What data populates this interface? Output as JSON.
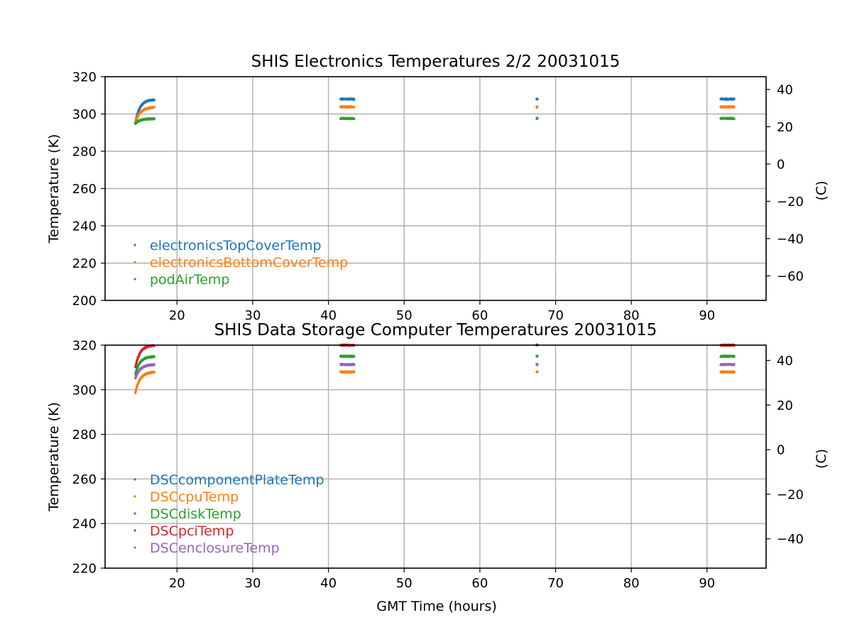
{
  "figure": {
    "xlabel": "GMT Time (hours)"
  },
  "colors": {
    "blue": "#1f77b4",
    "orange": "#ff7f0e",
    "green": "#2ca02c",
    "red": "#d62728",
    "purple": "#9467bd",
    "grid": "#b0b0b0"
  },
  "chart_data": [
    {
      "type": "scatter",
      "title": "SHIS Electronics Temperatures 2/2 20031015",
      "xlabel": "",
      "ylabel": "Temperature (K)",
      "y2label": "(C)",
      "xlim": [
        10.5,
        97.8
      ],
      "ylim": [
        200,
        320
      ],
      "x_ticks": [
        20,
        30,
        40,
        50,
        60,
        70,
        80,
        90
      ],
      "y_ticks": [
        200,
        220,
        240,
        260,
        280,
        300,
        320
      ],
      "y2_ticks": [
        40,
        20,
        0,
        -20,
        -40,
        -60
      ],
      "y2_tick_labels": [
        "40",
        "20",
        "0",
        "−20",
        "−40",
        "−60"
      ],
      "grid": true,
      "legend_position": "lower-left",
      "series": [
        {
          "name": "electronicsTopCoverTemp",
          "color": "#1f77b4",
          "segments": [
            {
              "type": "warmup",
              "x_start": 14.5,
              "x_end": 17.0,
              "y_start": 295.5,
              "y_end": 307.8
            },
            {
              "type": "flat",
              "x_start": 41.6,
              "x_end": 43.4,
              "y": 308.0
            },
            {
              "type": "flat",
              "x_start": 67.5,
              "x_end": 67.6,
              "y": 308.0
            },
            {
              "type": "flat",
              "x_start": 91.8,
              "x_end": 93.6,
              "y": 308.0
            }
          ]
        },
        {
          "name": "electronicsBottomCoverTemp",
          "color": "#ff7f0e",
          "segments": [
            {
              "type": "warmup",
              "x_start": 14.5,
              "x_end": 17.0,
              "y_start": 295.0,
              "y_end": 303.6
            },
            {
              "type": "flat",
              "x_start": 41.6,
              "x_end": 43.4,
              "y": 303.8
            },
            {
              "type": "flat",
              "x_start": 67.5,
              "x_end": 67.6,
              "y": 303.8
            },
            {
              "type": "flat",
              "x_start": 91.8,
              "x_end": 93.6,
              "y": 303.8
            }
          ]
        },
        {
          "name": "podAirTemp",
          "color": "#2ca02c",
          "segments": [
            {
              "type": "warmup",
              "x_start": 14.5,
              "x_end": 17.0,
              "y_start": 294.8,
              "y_end": 297.5
            },
            {
              "type": "flat",
              "x_start": 41.6,
              "x_end": 43.4,
              "y": 297.6
            },
            {
              "type": "flat",
              "x_start": 67.5,
              "x_end": 67.6,
              "y": 297.6
            },
            {
              "type": "flat",
              "x_start": 91.8,
              "x_end": 93.6,
              "y": 297.6
            }
          ]
        }
      ]
    },
    {
      "type": "scatter",
      "title": "SHIS Data Storage Computer Temperatures 20031015",
      "xlabel": "GMT Time (hours)",
      "ylabel": "Temperature (K)",
      "y2label": "(C)",
      "xlim": [
        10.5,
        97.8
      ],
      "ylim": [
        220,
        320
      ],
      "x_ticks": [
        20,
        30,
        40,
        50,
        60,
        70,
        80,
        90
      ],
      "y_ticks": [
        220,
        240,
        260,
        280,
        300,
        320
      ],
      "y2_ticks": [
        40,
        20,
        0,
        -20,
        -40
      ],
      "y2_tick_labels": [
        "40",
        "20",
        "0",
        "−20",
        "−40"
      ],
      "grid": true,
      "legend_position": "lower-left",
      "series": [
        {
          "name": "DSCcomponentPlateTemp",
          "color": "#1f77b4",
          "segments": []
        },
        {
          "name": "DSCcpuTemp",
          "color": "#ff7f0e",
          "segments": [
            {
              "type": "warmup",
              "x_start": 14.5,
              "x_end": 17.0,
              "y_start": 298.5,
              "y_end": 308.0
            },
            {
              "type": "flat",
              "x_start": 41.6,
              "x_end": 43.4,
              "y": 308.0
            },
            {
              "type": "flat",
              "x_start": 67.5,
              "x_end": 67.6,
              "y": 308.0
            },
            {
              "type": "flat",
              "x_start": 91.8,
              "x_end": 93.6,
              "y": 308.0
            }
          ]
        },
        {
          "name": "DSCdiskTemp",
          "color": "#2ca02c",
          "segments": [
            {
              "type": "warmup",
              "x_start": 14.5,
              "x_end": 17.0,
              "y_start": 307.0,
              "y_end": 315.0
            },
            {
              "type": "flat",
              "x_start": 41.6,
              "x_end": 43.4,
              "y": 315.0
            },
            {
              "type": "flat",
              "x_start": 67.5,
              "x_end": 67.6,
              "y": 315.0
            },
            {
              "type": "flat",
              "x_start": 91.8,
              "x_end": 93.6,
              "y": 315.0
            }
          ]
        },
        {
          "name": "DSCpciTemp",
          "color": "#d62728",
          "segments": [
            {
              "type": "warmup",
              "x_start": 14.5,
              "x_end": 17.0,
              "y_start": 310.0,
              "y_end": 320.0
            },
            {
              "type": "flat",
              "x_start": 41.6,
              "x_end": 43.4,
              "y": 320.0
            },
            {
              "type": "flat",
              "x_start": 67.5,
              "x_end": 67.6,
              "y": 320.0
            },
            {
              "type": "flat",
              "x_start": 91.8,
              "x_end": 93.6,
              "y": 320.0
            }
          ]
        },
        {
          "name": "DSCenclosureTemp",
          "color": "#9467bd",
          "segments": [
            {
              "type": "warmup",
              "x_start": 14.5,
              "x_end": 17.0,
              "y_start": 305.0,
              "y_end": 311.3
            },
            {
              "type": "flat",
              "x_start": 41.6,
              "x_end": 43.4,
              "y": 311.3
            },
            {
              "type": "flat",
              "x_start": 67.5,
              "x_end": 67.6,
              "y": 311.3
            },
            {
              "type": "flat",
              "x_start": 91.8,
              "x_end": 93.6,
              "y": 311.3
            }
          ]
        }
      ]
    }
  ]
}
